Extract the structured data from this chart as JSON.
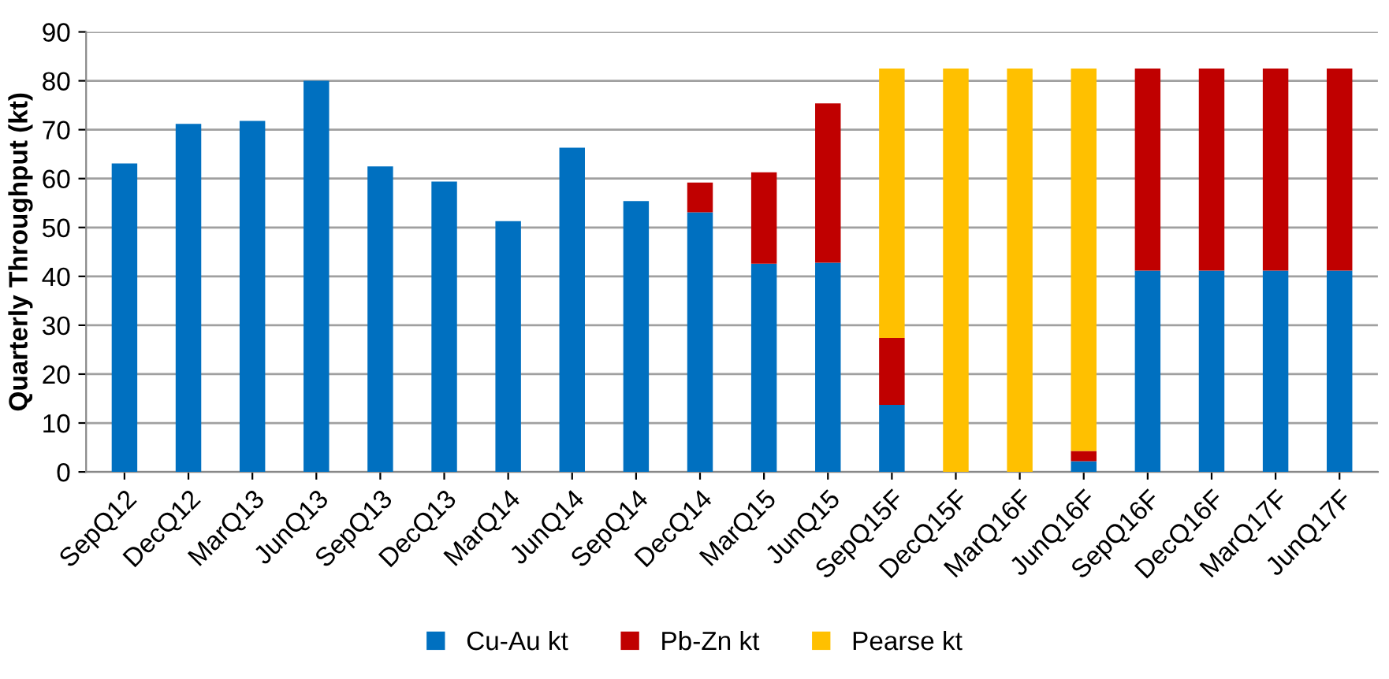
{
  "chart_data": {
    "type": "bar",
    "stacked": true,
    "ylabel": "Quarterly Throughput (kt)",
    "categories": [
      "SepQ12",
      "DecQ12",
      "MarQ13",
      "JunQ13",
      "SepQ13",
      "DecQ13",
      "MarQ14",
      "JunQ14",
      "SepQ14",
      "DecQ14",
      "MarQ15",
      "JunQ15",
      "SepQ15F",
      "DecQ15F",
      "MarQ16F",
      "JunQ16F",
      "SepQ16F",
      "DecQ16F",
      "MarQ17F",
      "JunQ17F"
    ],
    "series": [
      {
        "name": "Cu-Au kt",
        "color": "#0070c0",
        "values": [
          63.1,
          71.2,
          71.8,
          80,
          62.5,
          59.4,
          51.3,
          66.3,
          55.4,
          53.1,
          42.6,
          42.8,
          13.7,
          null,
          null,
          2.2,
          41.2,
          41.2,
          41.2,
          41.2
        ]
      },
      {
        "name": "Pb-Zn kt",
        "color": "#c00000",
        "values": [
          null,
          null,
          null,
          null,
          null,
          null,
          null,
          null,
          null,
          6.1,
          18.7,
          32.6,
          13.7,
          null,
          null,
          2.1,
          41.3,
          41.3,
          41.3,
          41.3
        ]
      },
      {
        "name": "Pearse kt",
        "color": "#ffc000",
        "values": [
          null,
          null,
          null,
          null,
          null,
          null,
          null,
          null,
          null,
          null,
          null,
          null,
          55.1,
          82.5,
          82.5,
          78.2,
          null,
          null,
          null,
          null
        ]
      }
    ],
    "ylim": [
      0,
      90
    ],
    "yticks": [
      0,
      10,
      20,
      30,
      40,
      50,
      60,
      70,
      80,
      90
    ],
    "grid": "y",
    "legend": "bottom"
  }
}
